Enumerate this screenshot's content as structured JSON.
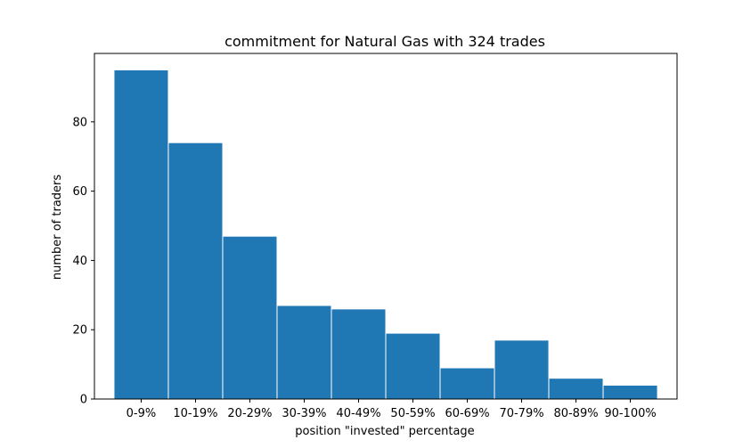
{
  "chart_data": {
    "type": "bar",
    "title": "commitment for Natural Gas with 324 trades",
    "xlabel": "position \"invested\" percentage",
    "ylabel": "number of traders",
    "categories": [
      "0-9%",
      "10-19%",
      "20-29%",
      "30-39%",
      "40-49%",
      "50-59%",
      "60-69%",
      "70-79%",
      "80-89%",
      "90-100%"
    ],
    "values": [
      95,
      74,
      47,
      27,
      26,
      19,
      9,
      17,
      6,
      4
    ],
    "ylim": [
      0,
      99.75
    ],
    "yticks": [
      0,
      20,
      40,
      60,
      80
    ],
    "grid": false,
    "bar_color": "#1f77b4",
    "bar_edge_color": "#ffffff"
  }
}
